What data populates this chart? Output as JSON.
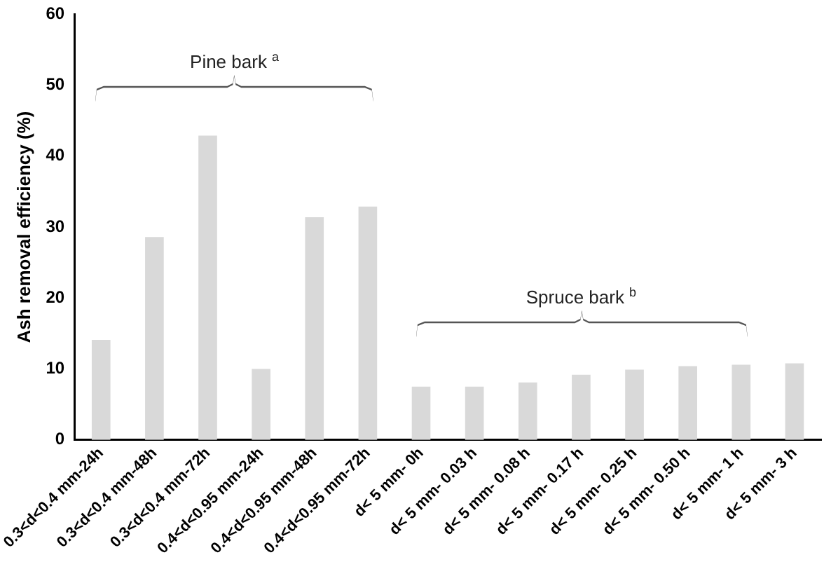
{
  "chart_data": {
    "type": "bar",
    "ylabel": "Ash removal efficiency (%)",
    "categories": [
      "0.3<d<0.4 mm-24h",
      "0.3<d<0.4 mm-48h",
      "0.3<d<0.4 mm-72h",
      "0.4<d<0.95 mm-24h",
      "0.4<d<0.95 mm-48h",
      "0.4<d<0.95 mm-72h",
      "d< 5 mm- 0h",
      "d< 5 mm- 0.03 h",
      "d< 5 mm- 0.08 h",
      "d< 5 mm- 0.17 h",
      "d< 5 mm- 0.25 h",
      "d< 5 mm- 0.50 h",
      "d< 5 mm- 1 h",
      "d< 5 mm- 3 h"
    ],
    "values": [
      14.1,
      28.6,
      42.9,
      10,
      31.4,
      32.9,
      7.5,
      7.5,
      8.1,
      9.2,
      9.9,
      10.4,
      10.6,
      10.8
    ],
    "color": "#d9d9d9",
    "ylim": [
      0,
      60
    ],
    "yticks": [
      0,
      10,
      20,
      30,
      40,
      50,
      60
    ],
    "grid": false,
    "legend": false,
    "annotations": [
      "Pine bark $^{a}$",
      "Spruce bark $^{b}$"
    ]
  }
}
